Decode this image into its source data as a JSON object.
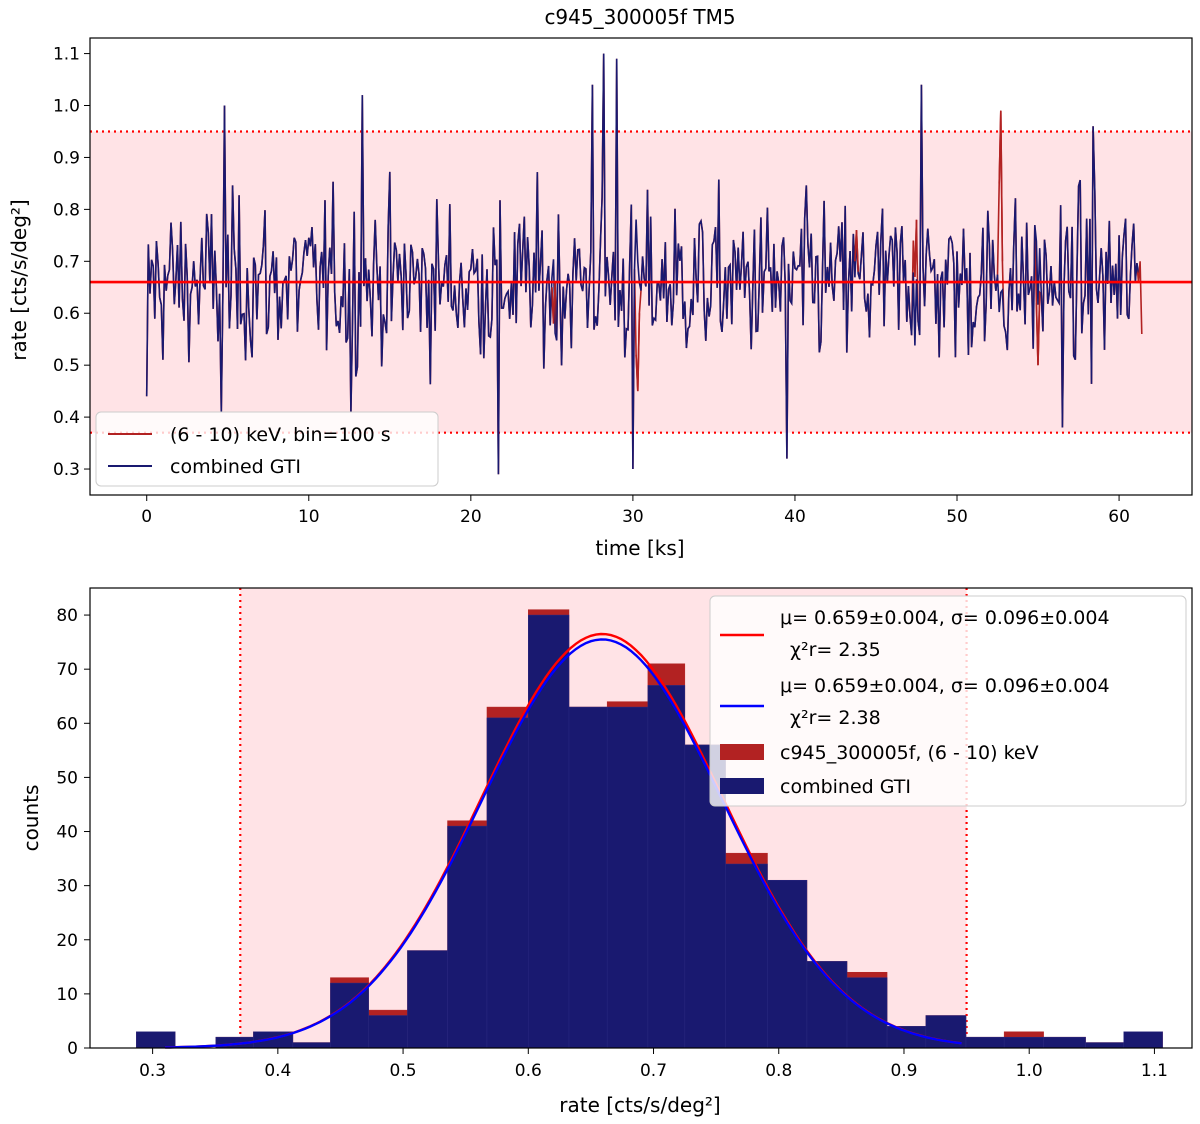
{
  "chart_data": [
    {
      "type": "line",
      "title": "c945_300005f TM5",
      "xlabel": "time [ks]",
      "ylabel": "rate [cts/s/deg²]",
      "xlim": [
        -3.5,
        64.5
      ],
      "ylim": [
        0.25,
        1.13
      ],
      "xticks": [
        0,
        10,
        20,
        30,
        40,
        50,
        60
      ],
      "yticks": [
        0.3,
        0.4,
        0.5,
        0.6,
        0.7,
        0.8,
        0.9,
        1.0,
        1.1
      ],
      "mean_rate": 0.66,
      "band": [
        0.37,
        0.95
      ],
      "legend": {
        "position": "lower-left",
        "entries": [
          {
            "label": "(6 - 10) keV, bin=100 s",
            "color": "#b22222"
          },
          {
            "label": "combined GTI",
            "color": "#191970"
          }
        ]
      },
      "series": [
        {
          "name": "(6 - 10) keV, bin=100 s",
          "color": "#b22222",
          "note": "100 s binned light curve, almost entirely overlapped by combined GTI",
          "highlights": [
            {
              "x": [
                25.0,
                25.1,
                25.2
              ],
              "y": [
                0.65,
                0.58,
                0.66
              ]
            },
            {
              "x": [
                30.2,
                30.3,
                30.4
              ],
              "y": [
                0.52,
                0.45,
                0.6
              ]
            },
            {
              "x": [
                43.7,
                43.8,
                43.9
              ],
              "y": [
                0.7,
                0.76,
                0.68
              ]
            },
            {
              "x": [
                47.3,
                47.4,
                47.5
              ],
              "y": [
                0.74,
                0.67,
                0.78
              ]
            },
            {
              "x": [
                52.6,
                52.7,
                52.8
              ],
              "y": [
                0.85,
                0.99,
                0.7
              ]
            },
            {
              "x": [
                54.9,
                55.0,
                55.1
              ],
              "y": [
                0.62,
                0.5,
                0.64
              ]
            },
            {
              "x": [
                61.2,
                61.3,
                61.4
              ],
              "y": [
                0.66,
                0.7,
                0.56
              ]
            }
          ]
        },
        {
          "name": "combined GTI",
          "color": "#191970",
          "points_x_start": 0.0,
          "points_x_step": 0.1,
          "n_points": 613,
          "mean": 0.66,
          "sigma": 0.096,
          "extremes": [
            {
              "x": 0.0,
              "y": 0.44
            },
            {
              "x": 4.6,
              "y": 0.41
            },
            {
              "x": 4.8,
              "y": 1.0
            },
            {
              "x": 12.6,
              "y": 0.41
            },
            {
              "x": 13.3,
              "y": 1.02
            },
            {
              "x": 21.7,
              "y": 0.29
            },
            {
              "x": 27.5,
              "y": 1.04
            },
            {
              "x": 28.2,
              "y": 1.1
            },
            {
              "x": 29.0,
              "y": 1.09
            },
            {
              "x": 30.0,
              "y": 0.3
            },
            {
              "x": 39.5,
              "y": 0.32
            },
            {
              "x": 47.8,
              "y": 1.04
            },
            {
              "x": 56.5,
              "y": 0.38
            },
            {
              "x": 58.4,
              "y": 0.96
            }
          ]
        }
      ]
    },
    {
      "type": "bar",
      "xlabel": "rate [cts/s/deg²]",
      "ylabel": "counts",
      "xlim": [
        0.25,
        1.13
      ],
      "ylim": [
        0,
        85
      ],
      "xticks": [
        0.3,
        0.4,
        0.5,
        0.6,
        0.7,
        0.8,
        0.9,
        1.0,
        1.1
      ],
      "yticks": [
        0,
        10,
        20,
        30,
        40,
        50,
        60,
        70,
        80
      ],
      "band": [
        0.37,
        0.95
      ],
      "bin_edges": [
        0.287,
        0.318,
        0.3505,
        0.3805,
        0.412,
        0.442,
        0.4725,
        0.5035,
        0.5355,
        0.567,
        0.6,
        0.6325,
        0.663,
        0.6955,
        0.725,
        0.7575,
        0.791,
        0.8225,
        0.8545,
        0.8865,
        0.9175,
        0.9495,
        0.98,
        1.0115,
        1.045,
        1.0755,
        1.1065
      ],
      "series": [
        {
          "name": "c945_300005f, (6 - 10) keV",
          "color": "#b22222",
          "values": [
            3,
            0,
            2,
            3,
            1,
            13,
            7,
            18,
            42,
            63,
            81,
            63,
            64,
            71,
            56,
            36,
            31,
            16,
            14,
            4,
            6,
            2,
            3,
            2,
            1,
            3
          ]
        },
        {
          "name": "combined GTI",
          "color": "#191970",
          "values": [
            3,
            0,
            2,
            3,
            1,
            12,
            6,
            18,
            41,
            61,
            80,
            63,
            63,
            67,
            56,
            34,
            31,
            16,
            13,
            4,
            6,
            2,
            2,
            2,
            1,
            3
          ]
        }
      ],
      "fits": [
        {
          "label": "μ= 0.659±0.004, σ= 0.096±0.004",
          "chi2": "χ²r= 2.35",
          "color": "#ff0000",
          "mu": 0.659,
          "sigma": 0.096,
          "peak": 76.5
        },
        {
          "label": "μ= 0.659±0.004, σ= 0.096±0.004",
          "chi2": "χ²r= 2.38",
          "color": "#0000ff",
          "mu": 0.659,
          "sigma": 0.096,
          "peak": 75.5
        }
      ],
      "legend": {
        "position": "upper-right",
        "entries": [
          {
            "label": "μ= 0.659±0.004, σ= 0.096±0.004",
            "sub": "χ²r= 2.35",
            "color": "#ff0000"
          },
          {
            "label": "μ= 0.659±0.004, σ= 0.096±0.004",
            "sub": "χ²r= 2.38",
            "color": "#0000ff"
          },
          {
            "label": "c945_300005f, (6 - 10) keV",
            "color": "#b22222"
          },
          {
            "label": "combined GTI",
            "color": "#191970"
          }
        ]
      }
    }
  ]
}
